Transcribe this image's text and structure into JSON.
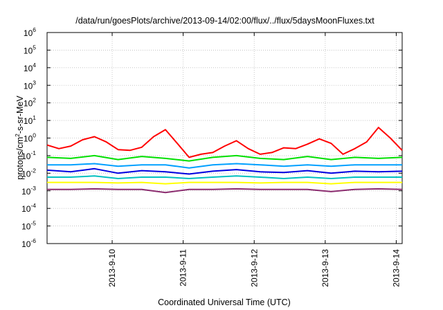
{
  "chart_data": {
    "type": "line",
    "title": "/data/run/goesPlots/archive/2013-09-14/02:00/flux/../flux/5daysMoonFluxes.txt",
    "xlabel": "Coordinated Universal Time (UTC)",
    "ylabel": {
      "prefix": "protons/cm",
      "sup": "2",
      "suffix": "-s-sr-MeV"
    },
    "yscale": "log",
    "ylim": [
      1e-06,
      1000000.0
    ],
    "y_ticks": [
      {
        "base": "10",
        "exp": "-6",
        "value": 1e-06
      },
      {
        "base": "10",
        "exp": "-5",
        "value": 1e-05
      },
      {
        "base": "10",
        "exp": "-4",
        "value": 0.0001
      },
      {
        "base": "10",
        "exp": "-3",
        "value": 0.001
      },
      {
        "base": "10",
        "exp": "-2",
        "value": 0.01
      },
      {
        "base": "10",
        "exp": "-1",
        "value": 0.1
      },
      {
        "base": "10",
        "exp": "0",
        "value": 1.0
      },
      {
        "base": "10",
        "exp": "1",
        "value": 10.0
      },
      {
        "base": "10",
        "exp": "2",
        "value": 100.0
      },
      {
        "base": "10",
        "exp": "3",
        "value": 1000.0
      },
      {
        "base": "10",
        "exp": "4",
        "value": 10000.0
      },
      {
        "base": "10",
        "exp": "5",
        "value": 100000.0
      },
      {
        "base": "10",
        "exp": "6",
        "value": 1000000.0
      }
    ],
    "xlim": [
      "2013-09-09 02:00",
      "2013-09-14 02:00"
    ],
    "x_ticks": [
      {
        "label": "2013-9-10",
        "value": "2013-09-10 00:00"
      },
      {
        "label": "2013-9-11",
        "value": "2013-09-11 00:00"
      },
      {
        "label": "2013-9-12",
        "value": "2013-09-12 00:00"
      },
      {
        "label": "2013-9-13",
        "value": "2013-09-13 00:00"
      },
      {
        "label": "2013-9-14",
        "value": "2013-09-14 00:00"
      }
    ],
    "grid": true,
    "legend": "none",
    "series": [
      {
        "color": "#ff0000",
        "x": [
          "2013-09-09 02:00",
          "2013-09-09 06:00",
          "2013-09-09 10:00",
          "2013-09-09 14:00",
          "2013-09-09 18:00",
          "2013-09-09 22:00",
          "2013-09-10 02:00",
          "2013-09-10 06:00",
          "2013-09-10 10:00",
          "2013-09-10 14:00",
          "2013-09-10 18:00",
          "2013-09-10 22:00",
          "2013-09-11 02:00",
          "2013-09-11 06:00",
          "2013-09-11 10:00",
          "2013-09-11 14:00",
          "2013-09-11 18:00",
          "2013-09-11 22:00",
          "2013-09-12 02:00",
          "2013-09-12 06:00",
          "2013-09-12 10:00",
          "2013-09-12 14:00",
          "2013-09-12 18:00",
          "2013-09-12 22:00",
          "2013-09-13 02:00",
          "2013-09-13 06:00",
          "2013-09-13 10:00",
          "2013-09-13 14:00",
          "2013-09-13 18:00",
          "2013-09-13 22:00",
          "2013-09-14 02:00"
        ],
        "y": [
          0.4,
          0.25,
          0.35,
          0.8,
          1.2,
          0.6,
          0.22,
          0.2,
          0.3,
          1.2,
          3.0,
          0.5,
          0.08,
          0.12,
          0.15,
          0.35,
          0.7,
          0.25,
          0.12,
          0.15,
          0.28,
          0.25,
          0.45,
          0.9,
          0.5,
          0.12,
          0.25,
          0.6,
          4.0,
          1.0,
          0.2
        ]
      },
      {
        "color": "#00e000",
        "x": [
          "2013-09-09 02:00",
          "2013-09-09 10:00",
          "2013-09-09 18:00",
          "2013-09-10 02:00",
          "2013-09-10 10:00",
          "2013-09-10 18:00",
          "2013-09-11 02:00",
          "2013-09-11 10:00",
          "2013-09-11 18:00",
          "2013-09-12 02:00",
          "2013-09-12 10:00",
          "2013-09-12 18:00",
          "2013-09-13 02:00",
          "2013-09-13 10:00",
          "2013-09-13 18:00",
          "2013-09-14 02:00"
        ],
        "y": [
          0.08,
          0.07,
          0.1,
          0.06,
          0.09,
          0.07,
          0.05,
          0.08,
          0.1,
          0.07,
          0.06,
          0.09,
          0.06,
          0.08,
          0.07,
          0.08
        ]
      },
      {
        "color": "#00a0ff",
        "x": [
          "2013-09-09 02:00",
          "2013-09-09 10:00",
          "2013-09-09 18:00",
          "2013-09-10 02:00",
          "2013-09-10 10:00",
          "2013-09-10 18:00",
          "2013-09-11 02:00",
          "2013-09-11 10:00",
          "2013-09-11 18:00",
          "2013-09-12 02:00",
          "2013-09-12 10:00",
          "2013-09-12 18:00",
          "2013-09-13 02:00",
          "2013-09-13 10:00",
          "2013-09-13 18:00",
          "2013-09-14 02:00"
        ],
        "y": [
          0.03,
          0.03,
          0.035,
          0.025,
          0.03,
          0.03,
          0.02,
          0.03,
          0.035,
          0.03,
          0.025,
          0.03,
          0.025,
          0.03,
          0.03,
          0.03
        ]
      },
      {
        "color": "#0000e0",
        "x": [
          "2013-09-09 02:00",
          "2013-09-09 10:00",
          "2013-09-09 18:00",
          "2013-09-10 02:00",
          "2013-09-10 10:00",
          "2013-09-10 18:00",
          "2013-09-11 02:00",
          "2013-09-11 10:00",
          "2013-09-11 18:00",
          "2013-09-12 02:00",
          "2013-09-12 10:00",
          "2013-09-12 18:00",
          "2013-09-13 02:00",
          "2013-09-13 10:00",
          "2013-09-13 18:00",
          "2013-09-14 02:00"
        ],
        "y": [
          0.015,
          0.012,
          0.018,
          0.01,
          0.014,
          0.012,
          0.009,
          0.013,
          0.016,
          0.012,
          0.011,
          0.014,
          0.01,
          0.013,
          0.012,
          0.013
        ]
      },
      {
        "color": "#00c0c0",
        "x": [
          "2013-09-09 02:00",
          "2013-09-09 10:00",
          "2013-09-09 18:00",
          "2013-09-10 02:00",
          "2013-09-10 10:00",
          "2013-09-10 18:00",
          "2013-09-11 02:00",
          "2013-09-11 10:00",
          "2013-09-11 18:00",
          "2013-09-12 02:00",
          "2013-09-12 10:00",
          "2013-09-12 18:00",
          "2013-09-13 02:00",
          "2013-09-13 10:00",
          "2013-09-13 18:00",
          "2013-09-14 02:00"
        ],
        "y": [
          0.006,
          0.006,
          0.007,
          0.005,
          0.006,
          0.006,
          0.005,
          0.006,
          0.007,
          0.006,
          0.005,
          0.006,
          0.005,
          0.006,
          0.006,
          0.006
        ]
      },
      {
        "color": "#ffff00",
        "x": [
          "2013-09-09 02:00",
          "2013-09-09 10:00",
          "2013-09-09 18:00",
          "2013-09-10 02:00",
          "2013-09-10 10:00",
          "2013-09-10 18:00",
          "2013-09-11 02:00",
          "2013-09-11 10:00",
          "2013-09-11 18:00",
          "2013-09-12 02:00",
          "2013-09-12 10:00",
          "2013-09-12 18:00",
          "2013-09-13 02:00",
          "2013-09-13 10:00",
          "2013-09-13 18:00",
          "2013-09-14 02:00"
        ],
        "y": [
          0.003,
          0.003,
          0.003,
          0.0028,
          0.003,
          0.0025,
          0.003,
          0.003,
          0.003,
          0.0028,
          0.003,
          0.003,
          0.0025,
          0.003,
          0.003,
          0.003
        ]
      },
      {
        "color": "#8b2c6f",
        "x": [
          "2013-09-09 02:00",
          "2013-09-09 10:00",
          "2013-09-09 18:00",
          "2013-09-10 02:00",
          "2013-09-10 10:00",
          "2013-09-10 18:00",
          "2013-09-11 02:00",
          "2013-09-11 10:00",
          "2013-09-11 18:00",
          "2013-09-12 02:00",
          "2013-09-12 10:00",
          "2013-09-12 18:00",
          "2013-09-13 02:00",
          "2013-09-13 10:00",
          "2013-09-13 18:00",
          "2013-09-14 02:00"
        ],
        "y": [
          0.0012,
          0.0012,
          0.0013,
          0.0012,
          0.0012,
          0.0008,
          0.0012,
          0.0012,
          0.0013,
          0.0012,
          0.0012,
          0.0012,
          0.0009,
          0.0012,
          0.0013,
          0.0012
        ]
      }
    ]
  }
}
